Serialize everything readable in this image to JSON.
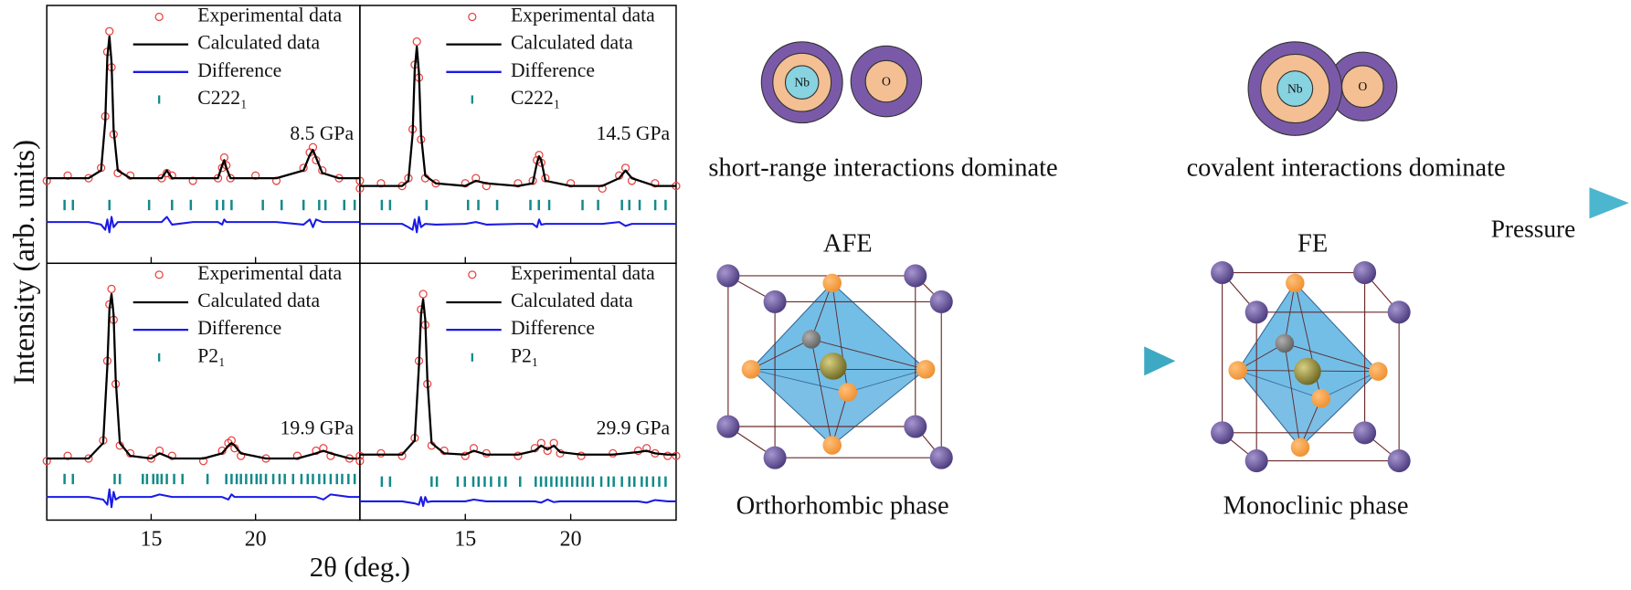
{
  "figure": {
    "ylabel": "Intensity (arb. units)",
    "xlabel": "2θ (deg.)"
  },
  "chart_data": [
    {
      "type": "line",
      "annotation": "8.5 GPa",
      "xlim": [
        10,
        25
      ],
      "ylim": [
        0,
        100
      ],
      "xticks": [
        15,
        20
      ],
      "legend": true,
      "x": [
        10,
        11,
        12,
        12.6,
        12.8,
        12.9,
        13.0,
        13.1,
        13.2,
        13.4,
        14,
        15.5,
        15.75,
        16,
        17,
        18.2,
        18.4,
        18.5,
        18.6,
        18.8,
        20,
        21,
        22.3,
        22.6,
        22.75,
        22.9,
        23.2,
        24,
        25
      ],
      "series": [
        {
          "name": "Experimental data",
          "color": "#e8433f",
          "style": "markers",
          "values": [
            32,
            34,
            33,
            37,
            57,
            82,
            90,
            76,
            50,
            35,
            34,
            33,
            35,
            34,
            32,
            33,
            37,
            41,
            38,
            33,
            34,
            32,
            37,
            43,
            45,
            40,
            36,
            33,
            32
          ]
        },
        {
          "name": "Calculated data",
          "color": "#000000",
          "style": "line",
          "values": [
            33,
            33,
            33,
            36,
            55,
            80,
            88,
            78,
            52,
            36,
            33,
            33,
            36,
            33,
            33,
            33,
            38,
            40,
            37,
            33,
            33,
            33,
            36,
            42,
            44,
            41,
            35,
            33,
            33
          ]
        },
        {
          "name": "Difference",
          "color": "#1a1ae6",
          "style": "line",
          "values": [
            16,
            16,
            16,
            15,
            13,
            17,
            12,
            18,
            14,
            16,
            16,
            16,
            18,
            15,
            16,
            16,
            15,
            17,
            16,
            16,
            16,
            16,
            15,
            17,
            14,
            17,
            16,
            16,
            16
          ]
        },
        {
          "name": "C222₁",
          "color": "#138a8a",
          "style": "ticks",
          "x": [
            10.85,
            11.25,
            13.0,
            14.9,
            16.0,
            16.9,
            18.15,
            18.45,
            18.85,
            20.35,
            21.25,
            22.3,
            23.05,
            23.35,
            24.25,
            24.75
          ],
          "values": [
            22.6,
            22.6,
            22.6,
            22.6,
            22.6,
            22.6,
            22.6,
            22.6,
            22.6,
            22.6,
            22.6,
            22.6,
            22.6,
            22.6,
            22.6,
            22.6
          ]
        }
      ]
    },
    {
      "type": "line",
      "annotation": "14.5 GPa",
      "xlim": [
        10,
        25
      ],
      "ylim": [
        0,
        100
      ],
      "xticks": [
        15,
        20
      ],
      "legend": true,
      "x": [
        10,
        11,
        12,
        12.3,
        12.5,
        12.6,
        12.7,
        12.8,
        12.9,
        13.1,
        13.6,
        15,
        15.5,
        16,
        17.5,
        18.2,
        18.4,
        18.5,
        18.6,
        18.8,
        20,
        21.5,
        22.3,
        22.6,
        22.9,
        24,
        25
      ],
      "series": [
        {
          "name": "Experimental data",
          "color": "#e8433f",
          "style": "markers",
          "values": [
            29,
            31,
            30,
            33,
            52,
            77,
            86,
            72,
            48,
            33,
            31,
            31,
            33,
            30,
            31,
            32,
            40,
            42,
            39,
            33,
            31,
            29,
            34,
            37,
            32,
            31,
            30
          ]
        },
        {
          "name": "Calculated data",
          "color": "#000000",
          "style": "line",
          "values": [
            30,
            30,
            30,
            32,
            50,
            75,
            84,
            74,
            50,
            34,
            31,
            30,
            32,
            31,
            30,
            31,
            39,
            41.5,
            40,
            32,
            30,
            30,
            33,
            36,
            33,
            30,
            30
          ]
        },
        {
          "name": "Difference",
          "color": "#1a1ae6",
          "style": "line",
          "values": [
            15.3,
            15.3,
            15.3,
            14,
            13,
            17,
            12,
            18,
            14,
            15.3,
            15,
            15.3,
            16,
            15,
            15.3,
            15.3,
            14,
            17,
            15,
            15.3,
            15.3,
            15.3,
            16,
            14.5,
            15.3,
            15.3,
            15.3
          ]
        },
        {
          "name": "C222₁",
          "color": "#138a8a",
          "style": "ticks",
          "x": [
            11.04,
            11.43,
            13.16,
            15.13,
            15.62,
            16.51,
            18.09,
            18.49,
            18.98,
            20.56,
            21.3,
            22.43,
            22.78,
            23.27,
            24.01,
            24.5
          ],
          "values": [
            22.6,
            22.6,
            22.6,
            22.6,
            22.6,
            22.6,
            22.6,
            22.6,
            22.6,
            22.6,
            22.6,
            22.6,
            22.6,
            22.6,
            22.6,
            22.6
          ]
        }
      ]
    },
    {
      "type": "line",
      "annotation": "19.9 GPa",
      "xlim": [
        10,
        25
      ],
      "ylim": [
        0,
        100
      ],
      "xticks": [
        15,
        20
      ],
      "legend": true,
      "x": [
        10,
        11,
        12,
        12.7,
        12.9,
        13.0,
        13.1,
        13.2,
        13.3,
        13.5,
        14,
        15,
        15.4,
        16,
        17.5,
        18.4,
        18.7,
        18.85,
        19.0,
        19.3,
        20.5,
        22,
        22.9,
        23.25,
        23.6,
        24.5,
        25
      ],
      "series": [
        {
          "name": "Experimental data",
          "color": "#e8433f",
          "style": "markers",
          "values": [
            23,
            25,
            24,
            31,
            62,
            84,
            90,
            78,
            53,
            29,
            26,
            24,
            27,
            25,
            23,
            27,
            30,
            31,
            28,
            25,
            24,
            25,
            27,
            28,
            25,
            24,
            23
          ]
        },
        {
          "name": "Calculated data",
          "color": "#000000",
          "style": "line",
          "values": [
            24,
            24,
            24,
            30,
            60,
            82,
            88,
            80,
            55,
            30,
            25,
            24,
            26,
            24,
            24,
            26,
            29,
            30,
            29,
            26,
            24,
            24,
            26,
            27,
            26,
            24,
            24
          ]
        },
        {
          "name": "Difference",
          "color": "#1a1ae6",
          "style": "line",
          "values": [
            9,
            9,
            9,
            8,
            6,
            12,
            5,
            11,
            8,
            9,
            9,
            9,
            10,
            9,
            9,
            9,
            8,
            10,
            9,
            9,
            9,
            9,
            9,
            8,
            10,
            9,
            9
          ]
        },
        {
          "name": "P2₁",
          "color": "#138a8a",
          "style": "ticks",
          "x": [
            10.85,
            11.25,
            13.25,
            13.5,
            14.6,
            14.8,
            15.1,
            15.3,
            15.5,
            15.75,
            16.1,
            16.5,
            17.7,
            18.6,
            18.85,
            19.1,
            19.3,
            19.55,
            19.8,
            20.05,
            20.25,
            20.5,
            20.85,
            21.15,
            21.4,
            21.8,
            22.2,
            22.5,
            22.75,
            23.05,
            23.3,
            23.6,
            23.9,
            24.15,
            24.45,
            24.75
          ],
          "values": [
            16,
            16,
            16,
            16,
            16,
            16,
            16,
            16,
            16,
            16,
            16,
            16,
            16,
            16,
            16,
            16,
            16,
            16,
            16,
            16,
            16,
            16,
            16,
            16,
            16,
            16,
            16,
            16,
            16,
            16,
            16,
            16,
            16,
            16,
            16,
            16
          ]
        }
      ]
    },
    {
      "type": "line",
      "annotation": "29.9 GPa",
      "xlim": [
        10,
        25
      ],
      "ylim": [
        0,
        100
      ],
      "xticks": [
        15,
        20
      ],
      "legend": true,
      "x": [
        10,
        11,
        12,
        12.6,
        12.8,
        12.9,
        13.0,
        13.1,
        13.2,
        13.4,
        14,
        15,
        15.4,
        16,
        17.5,
        18.3,
        18.6,
        18.9,
        19.2,
        19.5,
        20.5,
        22,
        23.2,
        23.6,
        24,
        24.6,
        25
      ],
      "series": [
        {
          "name": "Experimental data",
          "color": "#e8433f",
          "style": "markers",
          "values": [
            25,
            26,
            25,
            32,
            62,
            82,
            88,
            76,
            53,
            29,
            27,
            25,
            28,
            26,
            25,
            28,
            30,
            27,
            30,
            26,
            25,
            26,
            27,
            28,
            26,
            25,
            25
          ]
        },
        {
          "name": "Calculated data",
          "color": "#000000",
          "style": "line",
          "values": [
            25.5,
            25.5,
            25.5,
            31,
            60,
            80,
            86,
            78,
            55,
            30,
            26,
            25.5,
            27,
            25.5,
            25.5,
            27,
            29,
            27.5,
            29,
            26.5,
            25.5,
            25.5,
            26.5,
            27,
            26,
            25.5,
            25.5
          ]
        },
        {
          "name": "Difference",
          "color": "#1a1ae6",
          "style": "line",
          "values": [
            7.3,
            7.3,
            7.3,
            6.5,
            6,
            9,
            5.5,
            9,
            7,
            7.3,
            7.3,
            7.3,
            8,
            7.3,
            7.3,
            7.3,
            6.8,
            8,
            7,
            7.3,
            7.3,
            7.3,
            7.3,
            6.8,
            7.8,
            7.3,
            7.3
          ]
        },
        {
          "name": "P2₁",
          "color": "#138a8a",
          "style": "ticks",
          "x": [
            11.04,
            11.43,
            13.4,
            13.65,
            14.64,
            14.98,
            15.38,
            15.63,
            15.92,
            16.22,
            16.61,
            16.91,
            17.6,
            18.34,
            18.59,
            18.83,
            19.08,
            19.33,
            19.57,
            19.82,
            20.07,
            20.31,
            20.56,
            20.8,
            21.05,
            21.45,
            21.79,
            22.04,
            22.43,
            22.78,
            23.02,
            23.37,
            23.61,
            23.91,
            24.2,
            24.5
          ],
          "values": [
            15,
            15,
            15,
            15,
            15,
            15,
            15,
            15,
            15,
            15,
            15,
            15,
            15,
            15,
            15,
            15,
            15,
            15,
            15,
            15,
            15,
            15,
            15,
            15,
            15,
            15,
            15,
            15,
            15,
            15,
            15,
            15,
            15,
            15,
            15,
            15
          ]
        }
      ]
    }
  ],
  "schematic": {
    "left_label": "short-range interactions dominate",
    "right_label": "covalent interactions dominate",
    "arrow_label": "Pressure",
    "pairs": [
      {
        "a": "Nb",
        "b": "O"
      },
      {
        "a": "Nb",
        "b": "O"
      }
    ],
    "phases": [
      {
        "state": "AFE",
        "name": "Orthorhombic phase"
      },
      {
        "state": "FE",
        "name": "Monoclinic phase"
      }
    ]
  }
}
